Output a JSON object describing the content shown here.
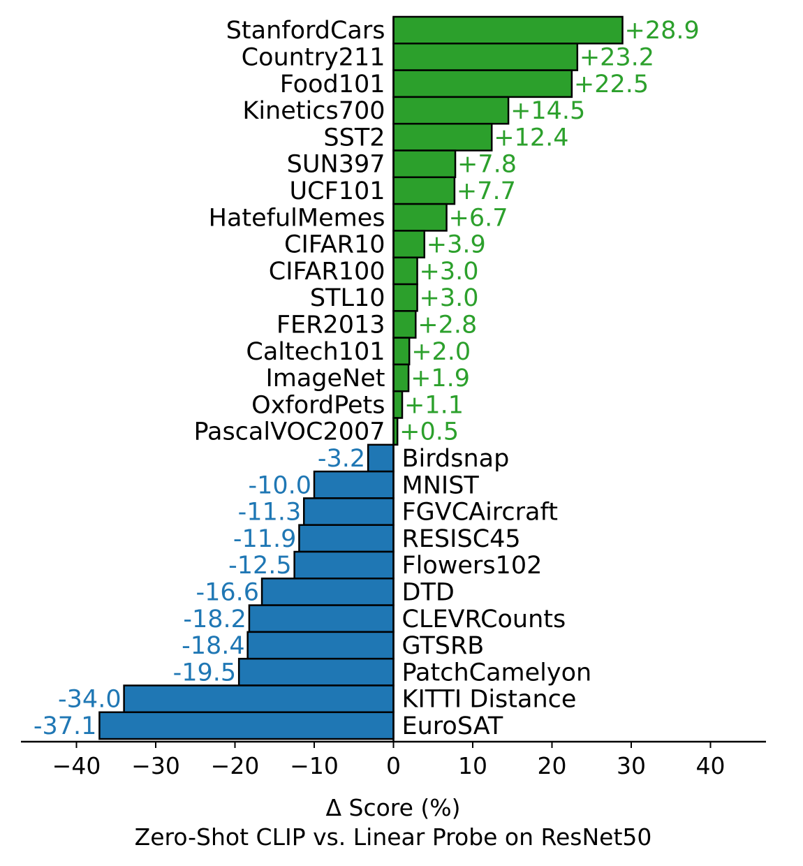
{
  "chart_data": {
    "type": "bar",
    "orientation": "horizontal",
    "xlabel": "Δ Score (%)",
    "caption": "Zero-Shot CLIP vs. Linear Probe on ResNet50",
    "xlim": [
      -47,
      47
    ],
    "xticks": [
      -40,
      -30,
      -20,
      -10,
      0,
      10,
      20,
      30,
      40
    ],
    "xtick_labels": [
      "−40",
      "−30",
      "−20",
      "−10",
      "0",
      "10",
      "20",
      "30",
      "40"
    ],
    "grid": false,
    "colors": {
      "positive": "#2ca02c",
      "negative": "#1f77b4",
      "edge": "#000000"
    },
    "categories": [
      "StanfordCars",
      "Country211",
      "Food101",
      "Kinetics700",
      "SST2",
      "SUN397",
      "UCF101",
      "HatefulMemes",
      "CIFAR10",
      "CIFAR100",
      "STL10",
      "FER2013",
      "Caltech101",
      "ImageNet",
      "OxfordPets",
      "PascalVOC2007",
      "Birdsnap",
      "MNIST",
      "FGVCAircraft",
      "RESISC45",
      "Flowers102",
      "DTD",
      "CLEVRCounts",
      "GTSRB",
      "PatchCamelyon",
      "KITTI Distance",
      "EuroSAT"
    ],
    "values": [
      28.9,
      23.2,
      22.5,
      14.5,
      12.4,
      7.8,
      7.7,
      6.7,
      3.9,
      3.0,
      3.0,
      2.8,
      2.0,
      1.9,
      1.1,
      0.5,
      -3.2,
      -10.0,
      -11.3,
      -11.9,
      -12.5,
      -16.6,
      -18.2,
      -18.4,
      -19.5,
      -34.0,
      -37.1
    ],
    "value_labels": [
      "+28.9",
      "+23.2",
      "+22.5",
      "+14.5",
      "+12.4",
      "+7.8",
      "+7.7",
      "+6.7",
      "+3.9",
      "+3.0",
      "+3.0",
      "+2.8",
      "+2.0",
      "+1.9",
      "+1.1",
      "+0.5",
      "-3.2",
      "-10.0",
      "-11.3",
      "-11.9",
      "-12.5",
      "-16.6",
      "-18.2",
      "-18.4",
      "-19.5",
      "-34.0",
      "-37.1"
    ]
  }
}
